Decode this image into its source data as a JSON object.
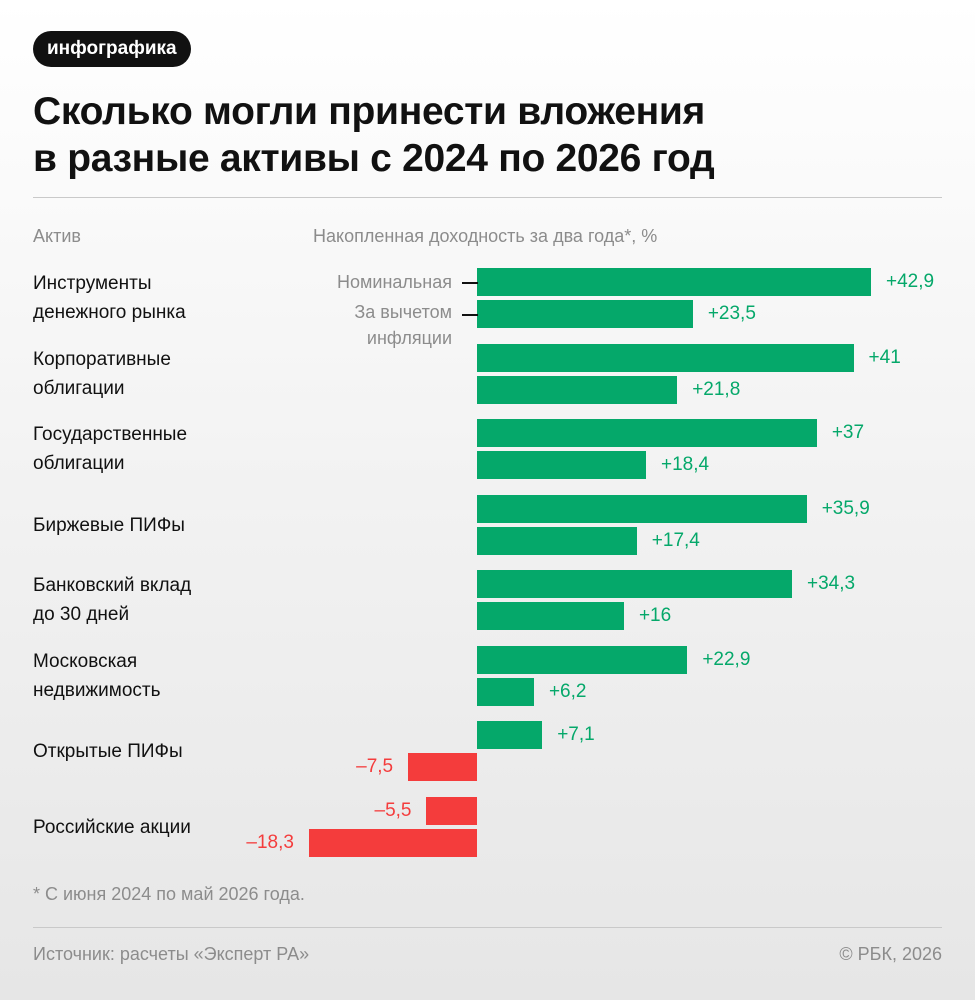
{
  "badge": "инфографика",
  "title_lines": [
    "Сколько могли принести вложения",
    "в разные активы с 2024 по 2026 год"
  ],
  "columns": {
    "asset": "Актив",
    "return": "Накопленная доходность за два года*, %"
  },
  "legend": {
    "nominal": "Номинальная",
    "real_line1": "За вычетом",
    "real_line2": "инфляции"
  },
  "footnote": "* С июня 2024 по май 2026 года.",
  "source": "Источник: расчеты «Эксперт РА»",
  "copyright": "© РБК, 2026",
  "colors": {
    "positive": "#05a86a",
    "negative": "#f43c3c"
  },
  "chart_data": {
    "type": "bar",
    "orientation": "horizontal",
    "series": [
      {
        "name": "Номинальная",
        "values": [
          42.9,
          41,
          37,
          35.9,
          34.3,
          22.9,
          7.1,
          -5.5
        ]
      },
      {
        "name": "За вычетом инфляции",
        "values": [
          23.5,
          21.8,
          18.4,
          17.4,
          16,
          6.2,
          -7.5,
          -18.3
        ]
      }
    ],
    "categories": [
      {
        "line1": "Инструменты",
        "line2": "денежного рынка"
      },
      {
        "line1": "Корпоративные",
        "line2": "облигации"
      },
      {
        "line1": "Государственные",
        "line2": "облигации"
      },
      {
        "line1": "Биржевые ПИФы",
        "line2": ""
      },
      {
        "line1": "Банковский вклад",
        "line2": "до 30 дней"
      },
      {
        "line1": "Московская",
        "line2": "недвижимость"
      },
      {
        "line1": "Открытые ПИФы",
        "line2": ""
      },
      {
        "line1": "Российские акции",
        "line2": ""
      }
    ],
    "labels": [
      [
        "+42,9",
        "+23,5"
      ],
      [
        "+41",
        "+21,8"
      ],
      [
        "+37",
        "+18,4"
      ],
      [
        "+35,9",
        "+17,4"
      ],
      [
        "+34,3",
        "+16"
      ],
      [
        "+22,9",
        "+6,2"
      ],
      [
        "+7,1",
        "–7,5"
      ],
      [
        "–5,5",
        "–18,3"
      ]
    ],
    "xlabel": "Накопленная доходность за два года*, %"
  }
}
